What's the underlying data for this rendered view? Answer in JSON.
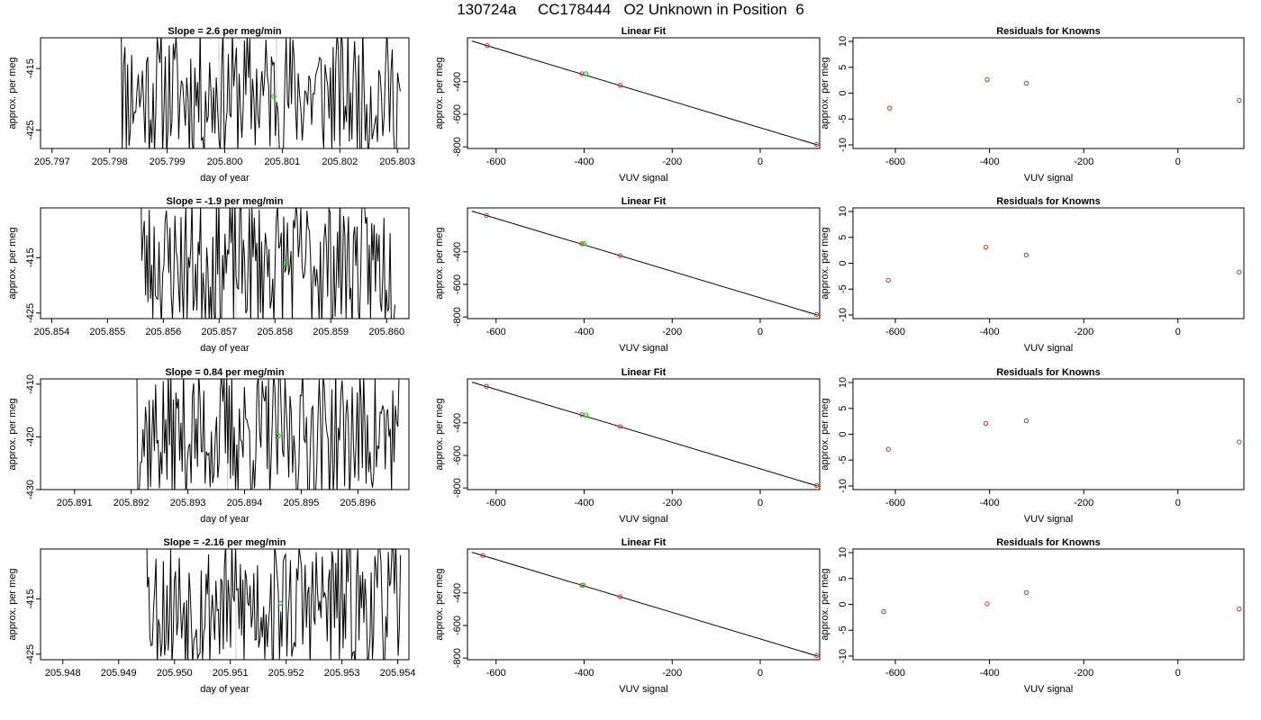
{
  "title": "130724a     CC178444   O2 Unknown in Position  6",
  "colors": {
    "trace": "#000000",
    "known_point": "#c0392b",
    "unknown_point": "#22cc22",
    "marker_line": "#cccccc",
    "fit_line": "#000000"
  },
  "chart_data": [
    {
      "type": "line",
      "row": 0,
      "col": 0,
      "title": "Slope =  2.6  per meg/min",
      "xlabel": "day of year",
      "ylabel": "approx. per meg",
      "xlim": [
        205.7968,
        205.8032
      ],
      "ylim": [
        -428,
        -410
      ],
      "xticks": [
        205.797,
        205.798,
        205.799,
        205.8,
        205.801,
        205.802,
        205.803
      ],
      "xtick_labels": [
        "205.797",
        "205.798",
        "205.799",
        "205.800",
        "205.801",
        "205.802",
        "205.803"
      ],
      "yticks": [
        -425,
        -415
      ],
      "ytick_labels": [
        "-425",
        "-415"
      ],
      "trace_x_range": [
        205.79815,
        205.80305
      ],
      "trace_range": [
        -428,
        -410
      ],
      "seed": 11,
      "markers": [
        205.7999,
        205.8009
      ],
      "unknown_point": {
        "x": 205.80085,
        "y": -419.5
      }
    },
    {
      "type": "scatter",
      "row": 0,
      "col": 1,
      "title": "Linear Fit",
      "xlabel": "VUV signal",
      "ylabel": "approx. per meg",
      "xlim": [
        -665,
        135
      ],
      "ylim": [
        -810,
        -130
      ],
      "xticks": [
        -600,
        -400,
        -200,
        0
      ],
      "xtick_labels": [
        "-600",
        "-400",
        "-200",
        "0"
      ],
      "yticks": [
        -800,
        -600,
        -400
      ],
      "ytick_labels": [
        "-800",
        "-600",
        "-400"
      ],
      "fit_line": {
        "x": [
          -655,
          130
        ],
        "y": [
          -150,
          -788
        ]
      },
      "knowns": [
        {
          "x": -620,
          "y": -178
        },
        {
          "x": -405,
          "y": -351
        },
        {
          "x": -318,
          "y": -422
        },
        {
          "x": 128,
          "y": -785
        }
      ],
      "unknown": {
        "x": -396,
        "y": -351
      }
    },
    {
      "type": "scatter",
      "row": 0,
      "col": 2,
      "title": "Residuals for Knowns",
      "xlabel": "VUV signal",
      "ylabel": "approx. per meg",
      "xlim": [
        -690,
        140
      ],
      "ylim": [
        -10.7,
        10.7
      ],
      "xticks": [
        -600,
        -400,
        -200,
        0
      ],
      "xtick_labels": [
        "-600",
        "-400",
        "-200",
        "0"
      ],
      "yticks": [
        -10,
        -5,
        0,
        5,
        10
      ],
      "ytick_labels": [
        "-10",
        "-5",
        "0",
        "5",
        "10"
      ],
      "knowns": [
        {
          "x": -612,
          "y": -2.9
        },
        {
          "x": -405,
          "y": 2.6
        },
        {
          "x": -322,
          "y": 1.9
        },
        {
          "x": 130,
          "y": -1.4
        }
      ]
    },
    {
      "type": "line",
      "row": 1,
      "col": 0,
      "title": "Slope =  -1.9  per meg/min",
      "xlabel": "day of year",
      "ylabel": "approx. per meg",
      "xlim": [
        205.8538,
        205.8604
      ],
      "ylim": [
        -426,
        -406
      ],
      "xticks": [
        205.854,
        205.855,
        205.856,
        205.857,
        205.858,
        205.859,
        205.86
      ],
      "xtick_labels": [
        "205.854",
        "205.855",
        "205.856",
        "205.857",
        "205.858",
        "205.859",
        "205.860"
      ],
      "yticks": [
        -425,
        -415
      ],
      "ytick_labels": [
        "-425",
        "-415"
      ],
      "trace_x_range": [
        205.85555,
        205.86015
      ],
      "trace_range": [
        -426,
        -406
      ],
      "seed": 23,
      "markers": [
        205.8573,
        205.8592
      ],
      "unknown_point": {
        "x": 205.8582,
        "y": -416.0
      }
    },
    {
      "type": "scatter",
      "row": 1,
      "col": 1,
      "title": "Linear Fit",
      "xlabel": "VUV signal",
      "ylabel": "approx. per meg",
      "xlim": [
        -665,
        135
      ],
      "ylim": [
        -810,
        -130
      ],
      "xticks": [
        -600,
        -400,
        -200,
        0
      ],
      "xtick_labels": [
        "-600",
        "-400",
        "-200",
        "0"
      ],
      "yticks": [
        -800,
        -600,
        -400
      ],
      "ytick_labels": [
        "-800",
        "-600",
        "-400"
      ],
      "fit_line": {
        "x": [
          -655,
          130
        ],
        "y": [
          -150,
          -788
        ]
      },
      "knowns": [
        {
          "x": -622,
          "y": -176
        },
        {
          "x": -405,
          "y": -350
        },
        {
          "x": -318,
          "y": -423
        },
        {
          "x": 128,
          "y": -785
        }
      ],
      "unknown": {
        "x": -400,
        "y": -350
      }
    },
    {
      "type": "scatter",
      "row": 1,
      "col": 2,
      "title": "Residuals for Knowns",
      "xlabel": "VUV signal",
      "ylabel": "approx. per meg",
      "xlim": [
        -690,
        140
      ],
      "ylim": [
        -10.7,
        10.7
      ],
      "xticks": [
        -600,
        -400,
        -200,
        0
      ],
      "xtick_labels": [
        "-600",
        "-400",
        "-200",
        "0"
      ],
      "yticks": [
        -10,
        -5,
        0,
        5,
        10
      ],
      "ytick_labels": [
        "-10",
        "-5",
        "0",
        "5",
        "10"
      ],
      "knowns": [
        {
          "x": -615,
          "y": -3.3
        },
        {
          "x": -408,
          "y": 3.1
        },
        {
          "x": -322,
          "y": 1.6
        },
        {
          "x": 130,
          "y": -1.7
        }
      ]
    },
    {
      "type": "line",
      "row": 2,
      "col": 0,
      "title": "Slope =  0.84  per meg/min",
      "xlabel": "day of year",
      "ylabel": "approx. per meg",
      "xlim": [
        205.8904,
        205.8969
      ],
      "ylim": [
        -430,
        -409
      ],
      "xticks": [
        205.891,
        205.892,
        205.893,
        205.894,
        205.895,
        205.896
      ],
      "xtick_labels": [
        "205.891",
        "205.892",
        "205.893",
        "205.894",
        "205.895",
        "205.896"
      ],
      "yticks": [
        -430,
        -420,
        -410
      ],
      "ytick_labels": [
        "-430",
        "-420",
        "-410"
      ],
      "trace_x_range": [
        205.89205,
        205.89675
      ],
      "trace_range": [
        -430,
        -409
      ],
      "seed": 37,
      "markers": [
        205.8937,
        205.8955
      ],
      "unknown_point": {
        "x": 205.8946,
        "y": -419.8
      }
    },
    {
      "type": "scatter",
      "row": 2,
      "col": 1,
      "title": "Linear Fit",
      "xlabel": "VUV signal",
      "ylabel": "approx. per meg",
      "xlim": [
        -665,
        135
      ],
      "ylim": [
        -810,
        -130
      ],
      "xticks": [
        -600,
        -400,
        -200,
        0
      ],
      "xtick_labels": [
        "-600",
        "-400",
        "-200",
        "0"
      ],
      "yticks": [
        -800,
        -600,
        -400
      ],
      "ytick_labels": [
        "-800",
        "-600",
        "-400"
      ],
      "fit_line": {
        "x": [
          -655,
          130
        ],
        "y": [
          -150,
          -788
        ]
      },
      "knowns": [
        {
          "x": -622,
          "y": -176
        },
        {
          "x": -405,
          "y": -350
        },
        {
          "x": -318,
          "y": -423
        },
        {
          "x": 128,
          "y": -785
        }
      ],
      "unknown": {
        "x": -396,
        "y": -352
      }
    },
    {
      "type": "scatter",
      "row": 2,
      "col": 2,
      "title": "Residuals for Knowns",
      "xlabel": "VUV signal",
      "ylabel": "approx. per meg",
      "xlim": [
        -690,
        140
      ],
      "ylim": [
        -10.7,
        10.7
      ],
      "xticks": [
        -600,
        -400,
        -200,
        0
      ],
      "xtick_labels": [
        "-600",
        "-400",
        "-200",
        "0"
      ],
      "yticks": [
        -10,
        -5,
        0,
        5,
        10
      ],
      "ytick_labels": [
        "-10",
        "-5",
        "0",
        "5",
        "10"
      ],
      "knowns": [
        {
          "x": -615,
          "y": -2.9
        },
        {
          "x": -408,
          "y": 2.1
        },
        {
          "x": -322,
          "y": 2.6
        },
        {
          "x": 130,
          "y": -1.5
        }
      ]
    },
    {
      "type": "line",
      "row": 3,
      "col": 0,
      "title": "Slope =  -2.16  per meg/min",
      "xlabel": "day of year",
      "ylabel": "approx. per meg",
      "xlim": [
        205.9476,
        205.9542
      ],
      "ylim": [
        -426,
        -406
      ],
      "xticks": [
        205.948,
        205.949,
        205.95,
        205.951,
        205.952,
        205.953,
        205.954
      ],
      "xtick_labels": [
        "205.948",
        "205.949",
        "205.950",
        "205.951",
        "205.952",
        "205.953",
        "205.954"
      ],
      "yticks": [
        -425,
        -415
      ],
      "ytick_labels": [
        "-425",
        "-415"
      ],
      "trace_x_range": [
        205.94945,
        205.95405
      ],
      "trace_range": [
        -426,
        -406
      ],
      "seed": 53,
      "markers": [
        205.9511,
        205.9528
      ],
      "unknown_point": {
        "x": 205.9519,
        "y": -415.8
      }
    },
    {
      "type": "scatter",
      "row": 3,
      "col": 1,
      "title": "Linear Fit",
      "xlabel": "VUV signal",
      "ylabel": "approx. per meg",
      "xlim": [
        -665,
        135
      ],
      "ylim": [
        -810,
        -130
      ],
      "xticks": [
        -600,
        -400,
        -200,
        0
      ],
      "xtick_labels": [
        "-600",
        "-400",
        "-200",
        "0"
      ],
      "yticks": [
        -800,
        -600,
        -400
      ],
      "ytick_labels": [
        "-800",
        "-600",
        "-400"
      ],
      "fit_line": {
        "x": [
          -655,
          130
        ],
        "y": [
          -150,
          -788
        ]
      },
      "knowns": [
        {
          "x": -630,
          "y": -170
        },
        {
          "x": -405,
          "y": -352
        },
        {
          "x": -318,
          "y": -423
        },
        {
          "x": 128,
          "y": -785
        }
      ],
      "unknown": {
        "x": -402,
        "y": -352
      }
    },
    {
      "type": "scatter",
      "row": 3,
      "col": 2,
      "title": "Residuals for Knowns",
      "xlabel": "VUV signal",
      "ylabel": "approx. per meg",
      "xlim": [
        -690,
        140
      ],
      "ylim": [
        -10.7,
        10.7
      ],
      "xticks": [
        -600,
        -400,
        -200,
        0
      ],
      "xtick_labels": [
        "-600",
        "-400",
        "-200",
        "0"
      ],
      "yticks": [
        -10,
        -5,
        0,
        5,
        10
      ],
      "ytick_labels": [
        "-10",
        "-5",
        "0",
        "5",
        "10"
      ],
      "knowns": [
        {
          "x": -625,
          "y": -1.4
        },
        {
          "x": -405,
          "y": 0.1
        },
        {
          "x": -322,
          "y": 2.3
        },
        {
          "x": 130,
          "y": -0.9
        }
      ]
    }
  ]
}
